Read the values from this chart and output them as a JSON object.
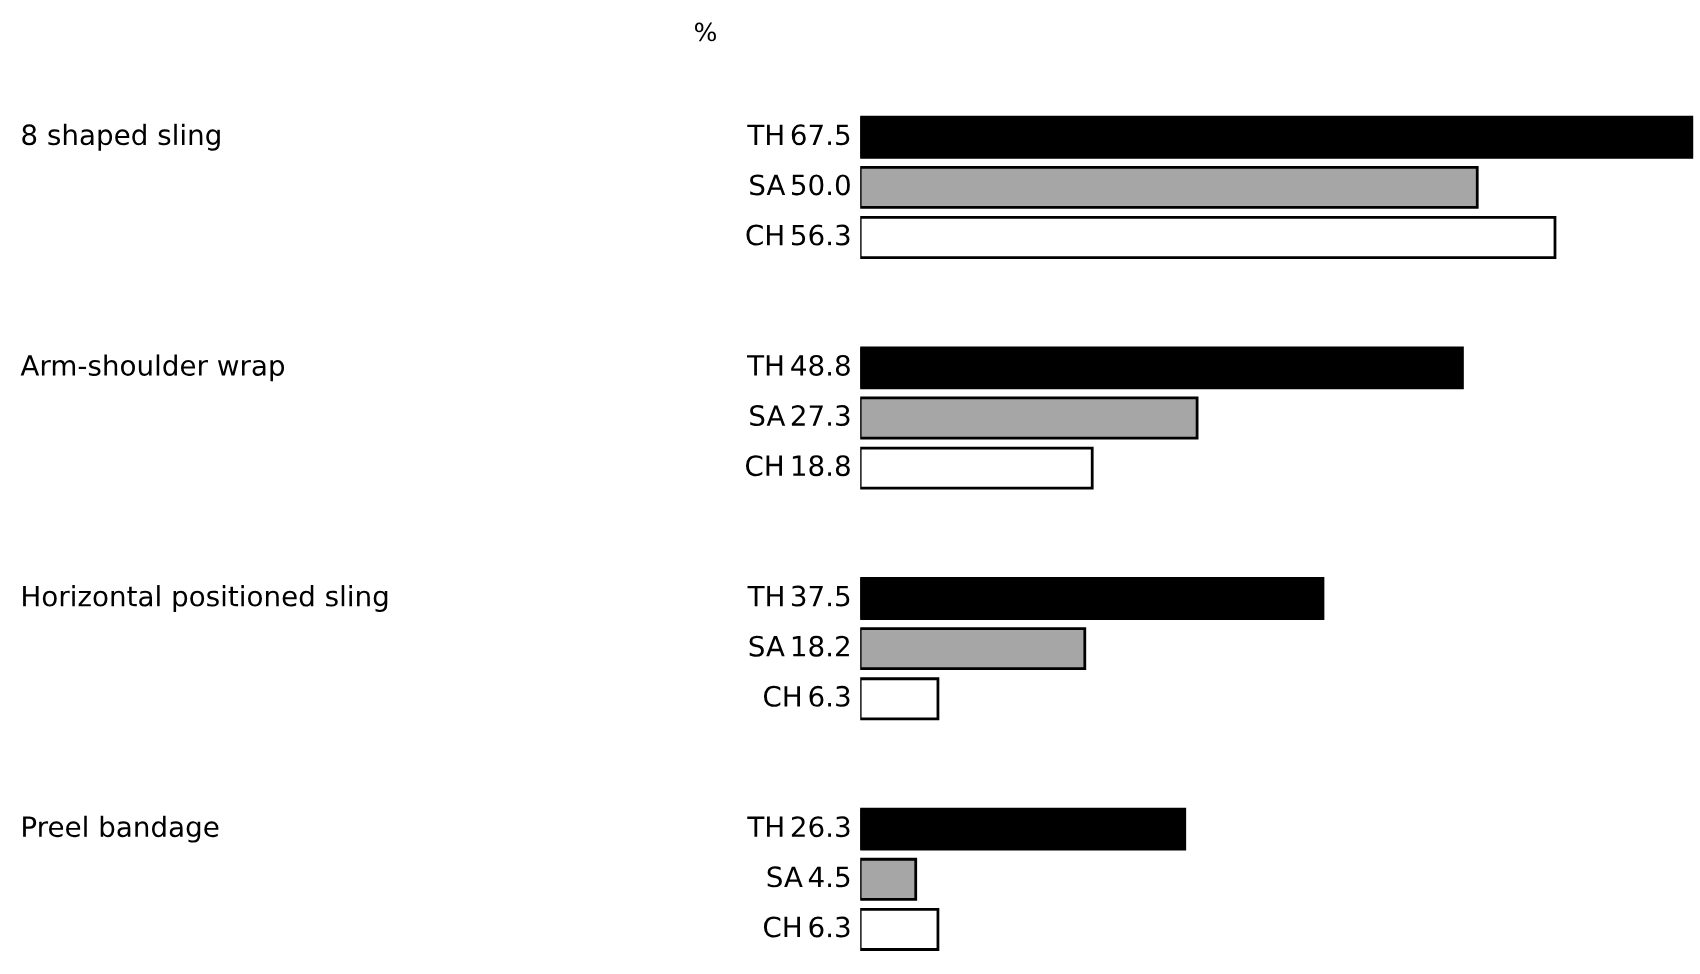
{
  "chart_data": {
    "type": "bar",
    "orientation": "horizontal",
    "xlim": [
      0,
      67.5
    ],
    "tick_labels": false,
    "annotations": [
      "%"
    ],
    "categories": [
      "8 shaped sling",
      "Arm-shoulder wrap",
      "Horizontal positioned sling",
      "Preel bandage"
    ],
    "series": [
      {
        "name": "TH",
        "color": "#000000",
        "values": [
          67.5,
          48.8,
          37.5,
          26.3
        ],
        "value_labels": [
          "67.5",
          "48.8",
          "37.5",
          "26.3"
        ]
      },
      {
        "name": "SA",
        "color": "#a6a6a6",
        "values": [
          50.0,
          27.3,
          18.2,
          4.5
        ],
        "value_labels": [
          "50.0",
          "27.3",
          "18.2",
          "4.5"
        ]
      },
      {
        "name": "CH",
        "color": "#ffffff",
        "values": [
          56.3,
          18.8,
          6.3,
          6.3
        ],
        "value_labels": [
          "56.3",
          "18.8",
          "6.3",
          "6.3"
        ]
      }
    ]
  }
}
